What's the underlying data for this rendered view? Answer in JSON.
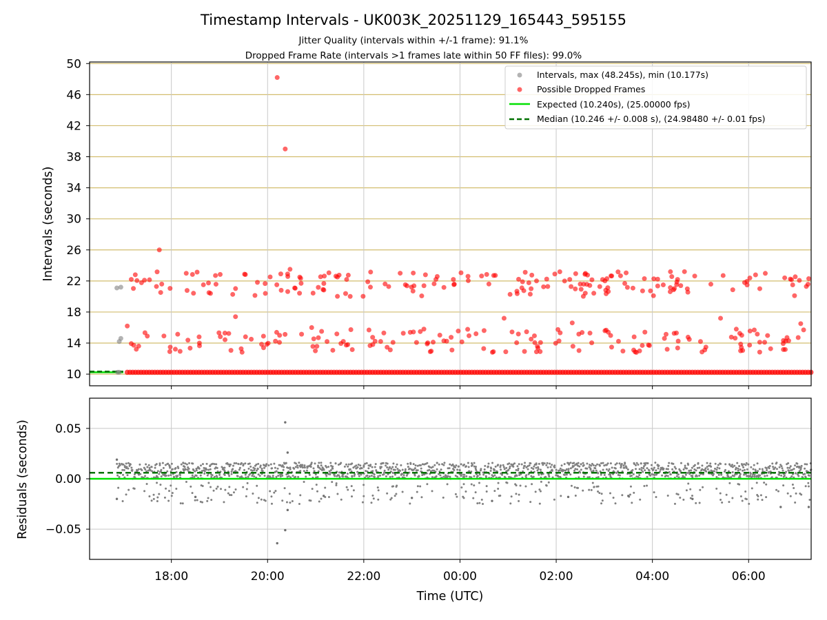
{
  "chart_data": [
    {
      "type": "scatter",
      "title": "Timestamp Intervals - UK003K_20251129_165443_595155",
      "subtitle_lines": [
        "Jitter Quality (intervals within +/-1 frame): 91.1%",
        "Dropped Frame Rate (intervals >1 frames late within 50 FF files): 99.0%"
      ],
      "ylabel": "Intervals (seconds)",
      "ylim": [
        8.5,
        50.2
      ],
      "yticks": [
        10,
        14,
        18,
        22,
        26,
        30,
        34,
        38,
        42,
        46,
        50
      ],
      "xlim": [
        "16:18",
        "07:18"
      ],
      "xticks": [
        "18:00",
        "20:00",
        "22:00",
        "00:00",
        "02:00",
        "04:00",
        "06:00"
      ],
      "grid": true,
      "legend_position": "top-right",
      "legend": [
        "Intervals, max (48.245s), min (10.177s)",
        "Possible Dropped Frames",
        "Expected (10.240s), (25.00000 fps)",
        "Median (10.246 +/- 0.008 s), (24.98480 +/- 0.01 fps)"
      ],
      "colors": {
        "intervals": "#808080",
        "dropped": "#ff0000",
        "expected": "#00e000",
        "median": "#007000",
        "hgrid": "#d2bd6e",
        "vgrid": "#c8c8c8"
      },
      "series": [
        {
          "name": "Intervals, max (48.245s), min (10.177s)",
          "points": [
            [
              "16:52",
              21.1
            ],
            [
              "16:57",
              21.2
            ],
            [
              "16:55",
              14.2
            ],
            [
              "16:57",
              14.6
            ],
            [
              "16:53",
              10.24
            ],
            [
              "16:55",
              10.24
            ]
          ]
        },
        {
          "name": "Possible Dropped Frames",
          "points": [
            [
              "20:12",
              48.2
            ],
            [
              "20:22",
              39.0
            ],
            [
              "17:45",
              26.0
            ],
            [
              "20:28",
              23.5
            ],
            [
              "20:25",
              22.9
            ],
            [
              "17:10",
              22.2
            ],
            [
              "17:15",
              22.8
            ],
            [
              "17:48",
              21.6
            ],
            [
              "18:55",
              22.7
            ],
            [
              "22:05",
              21.9
            ],
            [
              "23:30",
              22.2
            ],
            [
              "00:10",
              22.6
            ],
            [
              "01:18",
              21.9
            ],
            [
              "02:30",
              21.6
            ],
            [
              "03:50",
              22.3
            ],
            [
              "04:40",
              23.2
            ],
            [
              "05:55",
              21.8
            ],
            [
              "06:45",
              22.4
            ],
            [
              "07:15",
              22.3
            ],
            [
              "17:05",
              16.2
            ],
            [
              "17:30",
              14.9
            ],
            [
              "17:58",
              12.9
            ],
            [
              "18:35",
              14.0
            ],
            [
              "19:20",
              17.4
            ],
            [
              "19:55",
              13.4
            ],
            [
              "20:15",
              15.0
            ],
            [
              "20:55",
              16.0
            ],
            [
              "21:40",
              13.8
            ],
            [
              "22:25",
              15.3
            ],
            [
              "23:15",
              15.8
            ],
            [
              "23:50",
              13.1
            ],
            [
              "00:20",
              15.2
            ],
            [
              "00:55",
              17.2
            ],
            [
              "01:40",
              12.9
            ],
            [
              "02:20",
              16.6
            ],
            [
              "03:05",
              15.4
            ],
            [
              "03:40",
              12.8
            ],
            [
              "04:15",
              14.6
            ],
            [
              "05:00",
              14.2
            ],
            [
              "05:25",
              17.2
            ],
            [
              "05:50",
              13.0
            ],
            [
              "06:20",
              14.1
            ],
            [
              "06:50",
              14.3
            ],
            [
              "07:05",
              16.5
            ]
          ],
          "baseline_band": {
            "from": "17:05",
            "to": "07:18",
            "y": 10.24
          }
        },
        {
          "name": "Expected (10.240s), (25.00000 fps)",
          "y": 10.24
        },
        {
          "name": "Median (10.246 +/- 0.008 s), (24.98480 +/- 0.01 fps)",
          "y": 10.246
        }
      ]
    },
    {
      "type": "scatter",
      "xlabel": "Time (UTC)",
      "ylabel": "Residuals (seconds)",
      "ylim": [
        -0.08,
        0.08
      ],
      "yticks": [
        0.05,
        0.0,
        -0.05
      ],
      "ytick_labels": [
        "0.05",
        "0.00",
        "−0.05"
      ],
      "xlim": [
        "16:18",
        "07:18"
      ],
      "xticks": [
        "18:00",
        "20:00",
        "22:00",
        "00:00",
        "02:00",
        "04:00",
        "06:00"
      ],
      "grid": true,
      "series": [
        {
          "name": "",
          "band_y_range": [
            0.0,
            0.016
          ],
          "start": "16:52",
          "end": "07:18"
        },
        {
          "name": "",
          "y": 0.0,
          "style": "solid"
        },
        {
          "name": "",
          "y": 0.006,
          "style": "dashed"
        },
        {
          "name": "",
          "points": [
            [
              "16:52",
              0.019
            ],
            [
              "20:22",
              0.056
            ],
            [
              "20:25",
              0.026
            ],
            [
              "20:25",
              -0.031
            ],
            [
              "20:22",
              -0.051
            ],
            [
              "20:12",
              -0.064
            ],
            [
              "16:52",
              -0.02
            ],
            [
              "18:30",
              -0.018
            ],
            [
              "21:10",
              -0.017
            ],
            [
              "23:00",
              -0.019
            ],
            [
              "00:40",
              -0.022
            ],
            [
              "02:15",
              -0.018
            ],
            [
              "03:30",
              -0.017
            ],
            [
              "04:50",
              -0.02
            ],
            [
              "06:40",
              -0.028
            ],
            [
              "07:15",
              -0.028
            ]
          ]
        }
      ]
    }
  ]
}
